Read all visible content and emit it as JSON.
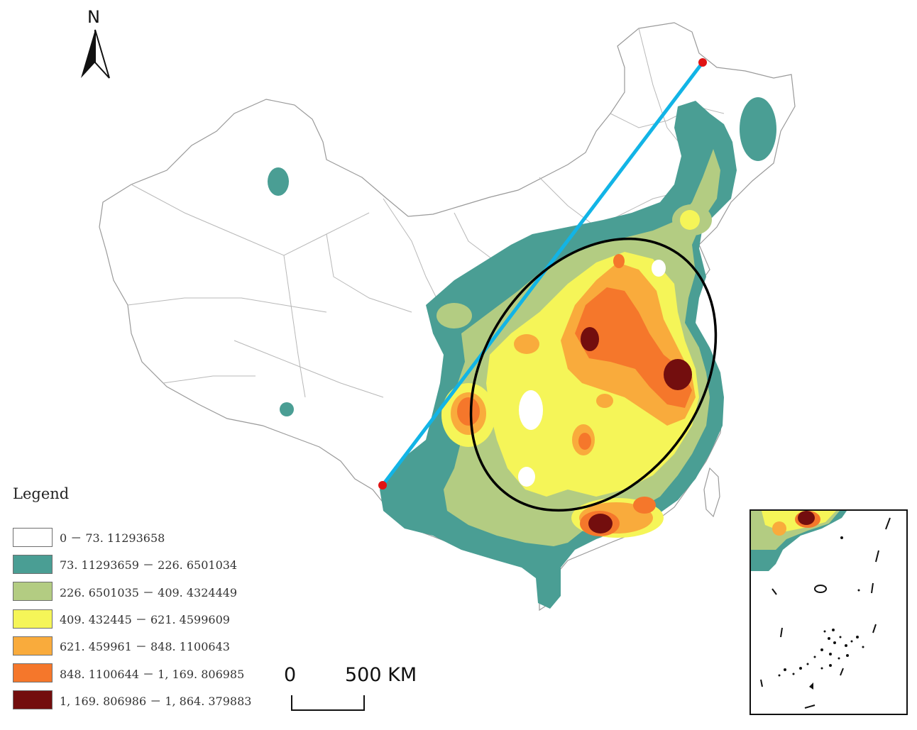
{
  "north_arrow": {
    "label": "N",
    "icon": "north-arrow-icon"
  },
  "legend": {
    "title": "Legend",
    "classes": [
      {
        "label": "0 － 73. 11293658",
        "color": "#ffffff"
      },
      {
        "label": "73. 11293659 － 226. 6501034",
        "color": "#4a9e94"
      },
      {
        "label": "226. 6501035 － 409. 4324449",
        "color": "#b3cc82"
      },
      {
        "label": "409. 432445 － 621. 4599609",
        "color": "#f5f558"
      },
      {
        "label": "621. 459961 － 848. 1100643",
        "color": "#f9ab3c"
      },
      {
        "label": "848. 1100644 － 1, 169. 806985",
        "color": "#f5772b"
      },
      {
        "label": "1, 169. 806986 － 1, 864. 379883",
        "color": "#730e0e"
      }
    ]
  },
  "scale_bar": {
    "start": "0",
    "end": "500 KM"
  },
  "colors": {
    "boundary": "#9a9a9a",
    "divide_line": "#12b4e6",
    "ellipse": "#000000",
    "endpoint": "#e01414"
  }
}
